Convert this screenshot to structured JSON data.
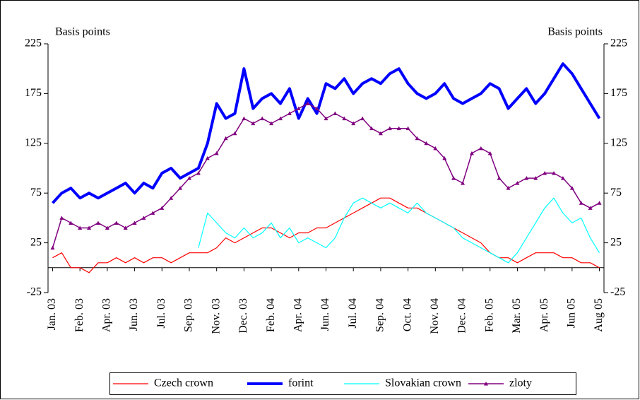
{
  "chart_data": {
    "type": "line",
    "y_label": "Basis points",
    "y2_label": "Basis points",
    "categories": [
      "Jan. 03",
      null,
      null,
      "Feb. 03",
      null,
      null,
      "Apr. 03",
      null,
      null,
      "Jun. 03",
      null,
      null,
      "Jul. 03",
      null,
      null,
      "Sep. 03",
      null,
      null,
      "Nov. 03",
      null,
      null,
      "Dec. 03",
      null,
      null,
      "Feb. 04",
      null,
      null,
      "Apr. 04",
      null,
      null,
      "Jun. 04",
      null,
      null,
      "Jul. 04",
      null,
      null,
      "Sep. 04",
      null,
      null,
      "Oct. 04",
      null,
      null,
      "Nov. 04",
      null,
      null,
      "Dec. 04",
      null,
      null,
      "Feb. 05",
      null,
      null,
      "Mar. 05",
      null,
      null,
      "Apr. 05",
      null,
      null,
      "Jun 05",
      null,
      null,
      "Aug 05"
    ],
    "series": [
      {
        "name": "Czech crown",
        "color": "#ff0000",
        "line_width": 1.2,
        "values": [
          10,
          15,
          0,
          0,
          -5,
          5,
          5,
          10,
          5,
          10,
          5,
          10,
          10,
          5,
          10,
          15,
          15,
          15,
          20,
          30,
          25,
          30,
          35,
          40,
          40,
          35,
          30,
          35,
          35,
          40,
          40,
          45,
          50,
          55,
          60,
          65,
          70,
          70,
          65,
          60,
          60,
          55,
          50,
          45,
          40,
          35,
          30,
          25,
          15,
          10,
          10,
          5,
          10,
          15,
          15,
          15,
          10,
          10,
          5,
          5,
          0
        ]
      },
      {
        "name": "forint",
        "color": "#0000ff",
        "line_width": 4,
        "values": [
          65,
          75,
          80,
          70,
          75,
          70,
          75,
          80,
          85,
          75,
          85,
          80,
          95,
          100,
          90,
          95,
          100,
          125,
          165,
          150,
          155,
          200,
          160,
          170,
          175,
          165,
          180,
          150,
          170,
          155,
          185,
          180,
          190,
          175,
          185,
          190,
          185,
          195,
          200,
          185,
          175,
          170,
          175,
          185,
          170,
          165,
          170,
          175,
          185,
          180,
          160,
          170,
          180,
          165,
          175,
          190,
          205,
          195,
          180,
          165,
          150
        ]
      },
      {
        "name": "Slovakian crown",
        "color": "#00ffff",
        "line_width": 1.2,
        "values": [
          null,
          null,
          null,
          null,
          null,
          null,
          null,
          null,
          null,
          null,
          null,
          null,
          null,
          null,
          null,
          null,
          20,
          55,
          45,
          35,
          30,
          40,
          30,
          35,
          45,
          30,
          40,
          25,
          30,
          25,
          20,
          30,
          50,
          65,
          70,
          65,
          60,
          65,
          60,
          55,
          65,
          55,
          50,
          45,
          40,
          30,
          25,
          20,
          15,
          10,
          5,
          15,
          30,
          45,
          60,
          70,
          55,
          45,
          50,
          30,
          15
        ]
      },
      {
        "name": "zloty",
        "color": "#800080",
        "line_width": 1.5,
        "marker": "triangle",
        "values": [
          20,
          50,
          45,
          40,
          40,
          45,
          40,
          45,
          40,
          45,
          50,
          55,
          60,
          70,
          80,
          90,
          95,
          110,
          115,
          130,
          135,
          150,
          145,
          150,
          145,
          150,
          155,
          160,
          165,
          160,
          150,
          155,
          150,
          145,
          150,
          140,
          135,
          140,
          140,
          140,
          130,
          125,
          120,
          110,
          90,
          85,
          115,
          120,
          115,
          90,
          80,
          85,
          90,
          90,
          95,
          95,
          90,
          80,
          65,
          60,
          65
        ]
      }
    ],
    "ylim": [
      -25,
      225
    ],
    "yticks": [
      -25,
      25,
      75,
      125,
      175,
      225
    ],
    "y2lim": [
      -25,
      225
    ],
    "y2ticks": [
      -25,
      25,
      75,
      125,
      175,
      225
    ]
  }
}
